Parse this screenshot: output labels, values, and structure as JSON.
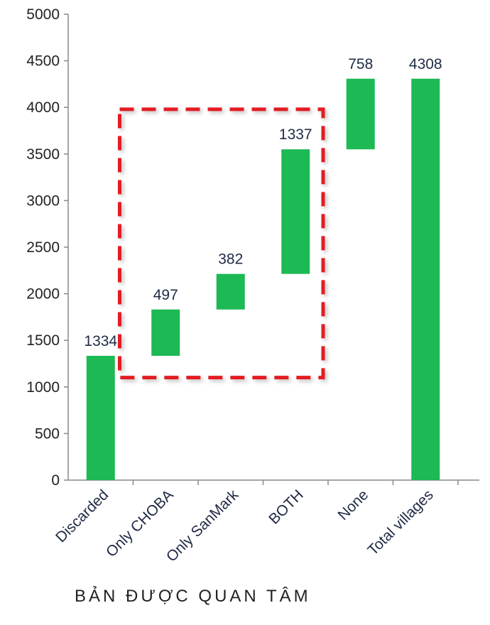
{
  "chart_data": {
    "type": "bar",
    "subtype": "waterfall",
    "categories": [
      "Discarded",
      "Only CHOBA",
      "Only SanMark",
      "BOTH",
      "None",
      "Total villages"
    ],
    "values": [
      1334,
      497,
      382,
      1337,
      758,
      4308
    ],
    "bases": [
      0,
      1334,
      1831,
      2213,
      3550,
      0
    ],
    "data_labels": [
      "1334",
      "497",
      "382",
      "1337",
      "758",
      "4308"
    ],
    "ylim": [
      0,
      5000
    ],
    "yticks": [
      "0",
      "500",
      "1000",
      "1500",
      "2000",
      "2500",
      "3000",
      "3500",
      "4000",
      "4500",
      "5000"
    ],
    "xlabel": "",
    "ylabel": "",
    "grid": false,
    "bar_color": "#1db954",
    "highlight": {
      "style": "red-dashed-box",
      "color": "#e31b23",
      "categories": [
        "Only CHOBA",
        "Only SanMark",
        "BOTH"
      ],
      "y_range": [
        1100,
        3980
      ]
    }
  },
  "caption": "BẢN ĐƯỢC QUAN TÂM"
}
